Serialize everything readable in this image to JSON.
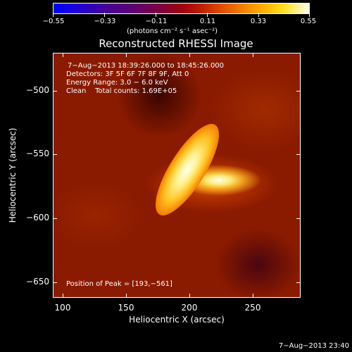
{
  "colorbar": {
    "tick_labels": [
      "−0.55",
      "−0.33",
      "−0.11",
      "0.11",
      "0.33",
      "0.55"
    ],
    "units": "(photons cm⁻² s⁻¹ asec⁻²)"
  },
  "title": "Reconstructed RHESSI Image",
  "info": {
    "time_range": "7−Aug−2013 18:39:26.000 to 18:45:26.000",
    "detectors": "Detectors: 3F 5F 6F 7F 8F 9F, Att 0",
    "energy_range": "Energy Range: 3.0 − 6.0 keV",
    "method_counts": "Clean    Total counts: 1.69E+05",
    "peak": "Position of Peak = [193,−561]"
  },
  "axes": {
    "x_title": "Heliocentric X (arcsec)",
    "y_title": "Heliocentric Y (arcsec)",
    "x_ticks": [
      "100",
      "150",
      "200",
      "250"
    ],
    "y_ticks": [
      "−500",
      "−550",
      "−600",
      "−650"
    ]
  },
  "timestamp": "7−Aug−2013 23:40"
}
